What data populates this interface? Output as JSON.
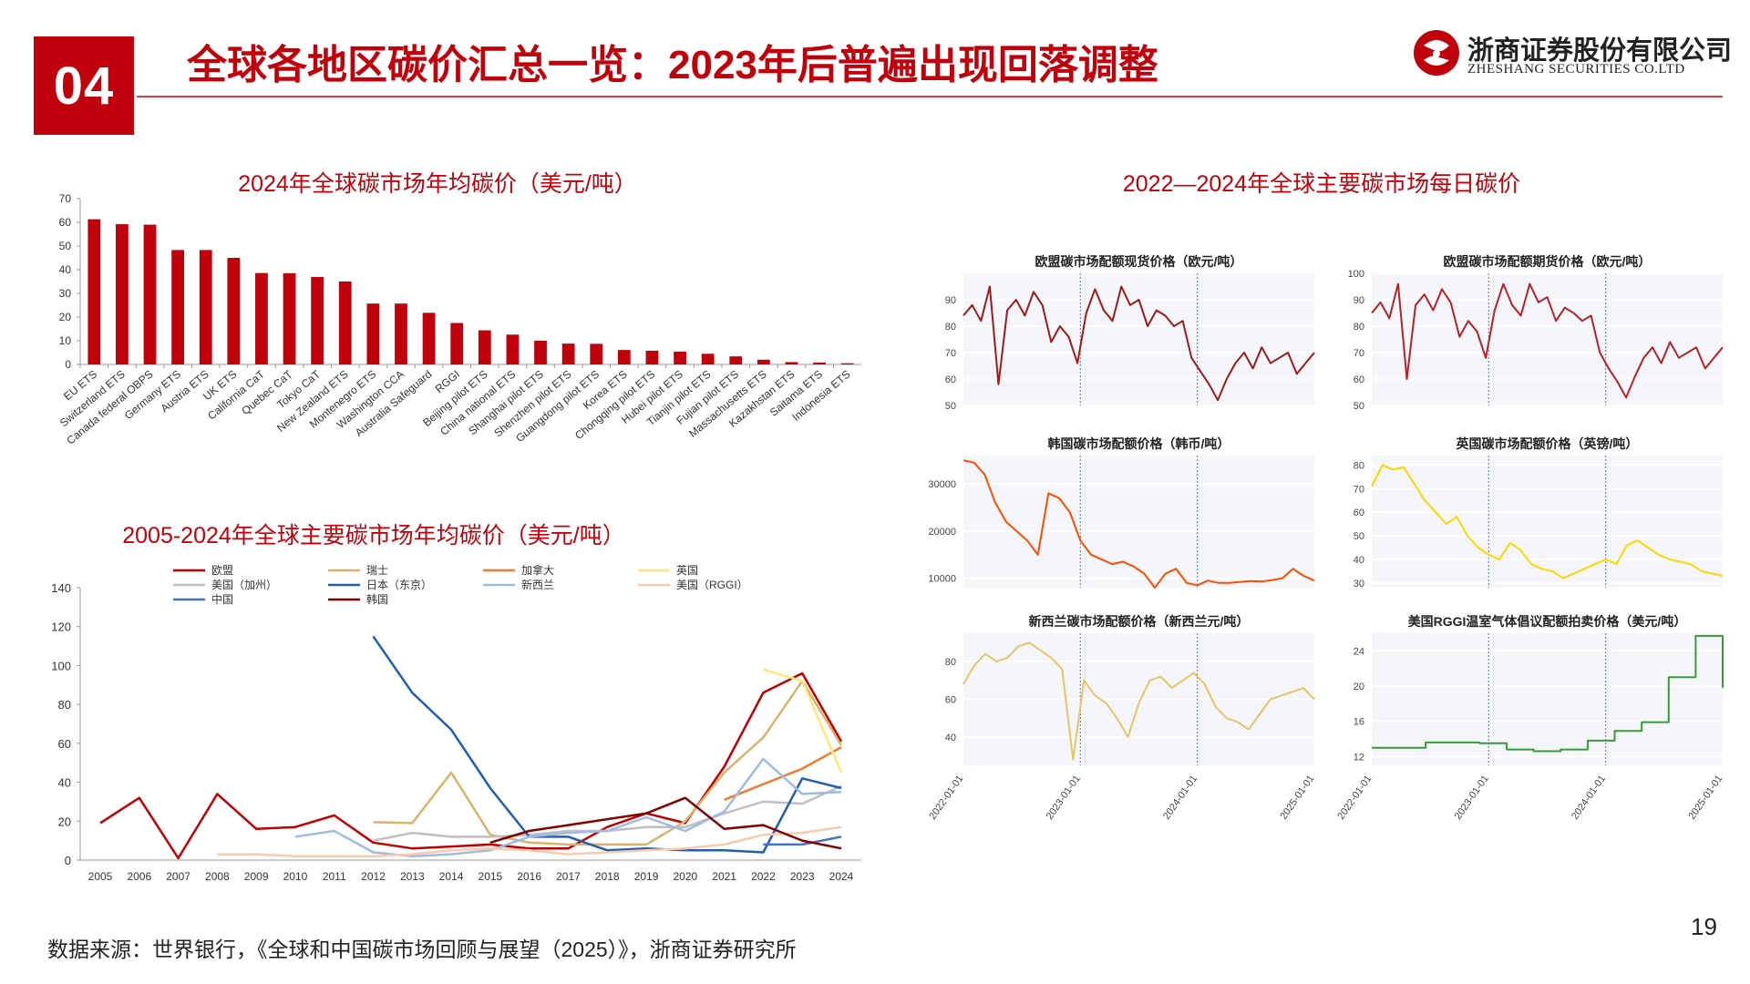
{
  "header": {
    "section_number": "04",
    "title": "全球各地区碳价汇总一览：2023年后普遍出现回落调整",
    "logo_cn": "浙商证券股份有限公司",
    "logo_en": "ZHESHANG SECURITIES CO.LTD"
  },
  "footer": {
    "source": "数据来源：世界银行，《全球和中国碳市场回顾与展望（2025）》，浙商证券研究所",
    "page_number": "19"
  },
  "colors": {
    "accent": "#c0000b"
  },
  "chart_data": [
    {
      "type": "bar",
      "title": "2024年全球碳市场年均碳价（美元/吨）",
      "ylim": [
        0,
        70
      ],
      "yticks": [
        0,
        10,
        20,
        30,
        40,
        50,
        60,
        70
      ],
      "categories": [
        "EU ETS",
        "Switzerland ETS",
        "Canada federal OBPS",
        "Germany ETS",
        "Austria ETS",
        "UK ETS",
        "California CaT",
        "Quebec CaT",
        "Tokyo CaT",
        "New Zealand ETS",
        "Montenegro ETS",
        "Washington CCA",
        "Australia Safeguard",
        "RGGI",
        "Beijing pilot ETS",
        "China national ETS",
        "Shanghai pilot ETS",
        "Shenzhen pilot ETS",
        "Guangdong pilot ETS",
        "Korea ETS",
        "Chongqing pilot ETS",
        "Hubei pilot ETS",
        "Tianjin pilot ETS",
        "Fujian pilot ETS",
        "Massachusetts ETS",
        "Kazakhstan ETS",
        "Saitama ETS",
        "Indonesia ETS"
      ],
      "values": [
        61.3,
        59.2,
        59.0,
        48.3,
        48.3,
        45.0,
        38.6,
        38.5,
        36.9,
        35.0,
        25.7,
        25.7,
        21.8,
        17.5,
        14.4,
        12.6,
        10.0,
        8.8,
        8.7,
        6.1,
        5.8,
        5.4,
        4.5,
        3.4,
        2.0,
        1.0,
        0.8,
        0.5
      ],
      "color": "#c0000b"
    },
    {
      "type": "line",
      "title": "2005-2024年全球主要碳市场年均碳价（美元/吨）",
      "ylim": [
        0,
        140
      ],
      "yticks": [
        0,
        20,
        40,
        60,
        80,
        100,
        120,
        140
      ],
      "x": [
        2005,
        2006,
        2007,
        2008,
        2009,
        2010,
        2011,
        2012,
        2013,
        2014,
        2015,
        2016,
        2017,
        2018,
        2019,
        2020,
        2021,
        2022,
        2023,
        2024
      ],
      "legend_position": "top",
      "series": [
        {
          "name": "欧盟",
          "color": "#c00000",
          "values": [
            19,
            32,
            1,
            34,
            16,
            17,
            23,
            9,
            6,
            7,
            8,
            6,
            6,
            17,
            24,
            19,
            48,
            86,
            96,
            61
          ]
        },
        {
          "name": "瑞士",
          "color": "#d9b36c",
          "values": [
            null,
            null,
            null,
            null,
            null,
            null,
            null,
            19.5,
            19,
            45,
            13,
            9,
            8,
            8,
            8,
            20,
            45,
            63,
            92,
            59
          ]
        },
        {
          "name": "加拿大",
          "color": "#ed7d31",
          "values": [
            null,
            null,
            null,
            null,
            null,
            null,
            null,
            null,
            null,
            null,
            null,
            null,
            null,
            null,
            null,
            null,
            31,
            39,
            47,
            58
          ]
        },
        {
          "name": "英国",
          "color": "#ffe680",
          "values": [
            null,
            null,
            null,
            null,
            null,
            null,
            null,
            null,
            null,
            null,
            null,
            null,
            null,
            null,
            null,
            null,
            null,
            98,
            92,
            45
          ]
        },
        {
          "name": "美国（加州）",
          "color": "#bfbfbf",
          "values": [
            null,
            null,
            null,
            null,
            null,
            null,
            null,
            10,
            14,
            12,
            12,
            13,
            15,
            15,
            17,
            17,
            24,
            30,
            29,
            38
          ]
        },
        {
          "name": "日本（东京）",
          "color": "#1f5fae",
          "values": [
            null,
            null,
            null,
            null,
            null,
            null,
            null,
            115,
            86,
            67,
            37,
            12,
            12,
            5,
            6,
            5,
            5,
            4,
            42,
            37
          ]
        },
        {
          "name": "新西兰",
          "color": "#9dbbe3",
          "values": [
            null,
            null,
            null,
            null,
            null,
            12,
            15,
            4,
            2,
            3,
            5,
            12,
            14,
            15,
            22,
            15,
            25,
            52,
            34,
            35
          ]
        },
        {
          "name": "美国（RGGI）",
          "color": "#f8cbad",
          "values": [
            null,
            null,
            null,
            3,
            3,
            2,
            2,
            2,
            3,
            5,
            6,
            5,
            3,
            4,
            5,
            6,
            8,
            13,
            14,
            17
          ]
        },
        {
          "name": "中国",
          "color": "#4472c4",
          "values": [
            null,
            null,
            null,
            null,
            null,
            null,
            null,
            null,
            null,
            null,
            null,
            null,
            null,
            null,
            null,
            null,
            null,
            8,
            8,
            12
          ]
        },
        {
          "name": "韩国",
          "color": "#800000",
          "values": [
            null,
            null,
            null,
            null,
            null,
            null,
            null,
            null,
            null,
            null,
            9,
            15,
            18,
            21,
            24,
            32,
            16,
            18,
            10,
            6
          ]
        }
      ]
    },
    {
      "type": "line",
      "title": "2022—2024年全球主要碳市场每日碳价",
      "x_start": "2022-01-01",
      "x_end": "2025-01-01",
      "xticks": [
        "2022-01-01",
        "2023-01-01",
        "2024-01-01",
        "2025-01-01"
      ],
      "panels": [
        {
          "title": "欧盟碳市场配额现货价格（欧元/吨）",
          "color": "#9c1b1b",
          "ylim": [
            50,
            100
          ],
          "yticks": [
            50,
            60,
            70,
            80,
            90
          ],
          "values": [
            84,
            88,
            82,
            95,
            58,
            86,
            90,
            84,
            93,
            88,
            74,
            80,
            76,
            66,
            85,
            94,
            86,
            82,
            95,
            88,
            90,
            80,
            86,
            84,
            80,
            82,
            68,
            63,
            58,
            52,
            60,
            66,
            70,
            64,
            72,
            66,
            68,
            70,
            62,
            66,
            70
          ]
        },
        {
          "title": "欧盟碳市场配额期货价格（欧元/吨）",
          "color": "#b4232a",
          "ylim": [
            50,
            100
          ],
          "yticks": [
            50,
            60,
            70,
            80,
            90,
            100
          ],
          "values": [
            85,
            89,
            83,
            96,
            60,
            88,
            92,
            86,
            94,
            89,
            76,
            82,
            78,
            68,
            86,
            96,
            88,
            84,
            96,
            89,
            91,
            82,
            87,
            85,
            82,
            84,
            70,
            64,
            59,
            53,
            61,
            68,
            72,
            66,
            74,
            68,
            70,
            72,
            64,
            68,
            72
          ]
        },
        {
          "title": "韩国碳市场配额价格（韩币/吨）",
          "color": "#ff4d00",
          "ylim": [
            8000,
            36000
          ],
          "yticks": [
            10000,
            20000,
            30000
          ],
          "values": [
            35000,
            34500,
            32000,
            26000,
            22000,
            20000,
            18000,
            15000,
            28000,
            27000,
            24000,
            18000,
            15000,
            14000,
            13000,
            13500,
            12500,
            11000,
            8000,
            11000,
            12000,
            9000,
            8500,
            9500,
            9000,
            9000,
            9200,
            9400,
            9300,
            9600,
            10000,
            12000,
            10500,
            9500
          ]
        },
        {
          "title": "英国碳市场配额价格（英镑/吨）",
          "color": "#ffd700",
          "ylim": [
            28,
            84
          ],
          "yticks": [
            30,
            40,
            50,
            60,
            70,
            80
          ],
          "values": [
            71,
            80,
            78,
            79,
            72,
            65,
            60,
            55,
            58,
            50,
            45,
            42,
            40,
            47,
            44,
            38,
            36,
            35,
            32,
            34,
            36,
            38,
            40,
            38,
            46,
            48,
            45,
            42,
            40,
            39,
            38,
            35,
            34,
            33
          ]
        },
        {
          "title": "新西兰碳市场配额价格（新西兰元/吨）",
          "color": "#e8c36a",
          "ylim": [
            25,
            95
          ],
          "yticks": [
            40,
            60,
            80
          ],
          "values": [
            68,
            78,
            84,
            80,
            82,
            88,
            90,
            86,
            82,
            76,
            28,
            70,
            62,
            58,
            50,
            40,
            58,
            70,
            72,
            66,
            70,
            74,
            68,
            56,
            50,
            48,
            44,
            52,
            60,
            62,
            64,
            66,
            60
          ]
        },
        {
          "title": "美国RGGI温室气体倡议配额拍卖价格（美元/吨）",
          "color": "#3a9a3a",
          "ylim": [
            11,
            26
          ],
          "yticks": [
            12,
            16,
            20,
            24
          ],
          "values": [
            13,
            13,
            13.6,
            13.6,
            13.5,
            12.8,
            12.6,
            12.8,
            13.8,
            14.9,
            15.9,
            21.0,
            25.7,
            19.8
          ]
        }
      ]
    }
  ]
}
